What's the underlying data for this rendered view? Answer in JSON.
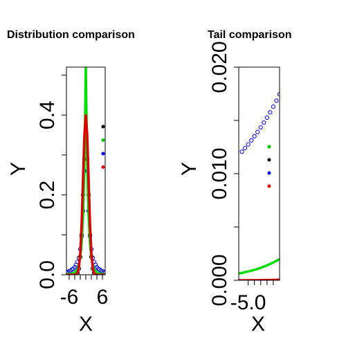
{
  "chart_data": [
    {
      "type": "line",
      "title": "Distribution comparison",
      "xlabel": "X",
      "ylabel": "Y",
      "xlim": [
        -7,
        7
      ],
      "ylim": [
        0,
        0.52
      ],
      "x_ticks": [
        -6,
        -4,
        -2,
        0,
        2,
        4,
        6
      ],
      "x_tick_labels": [
        "-6",
        "",
        "",
        "",
        "",
        "",
        "6"
      ],
      "y_ticks": [
        0,
        0.1,
        0.2,
        0.3,
        0.4,
        0.5
      ],
      "y_tick_labels": [
        "0.0",
        "",
        "0.2",
        "",
        "0.4",
        ""
      ],
      "legend_placement": "right",
      "legend_colors": [
        "#000000",
        "#00cc00",
        "#0000ff",
        "#ff0000"
      ],
      "series": [
        {
          "color": "#0000ff",
          "style": "points",
          "x": [
            -7,
            -6.5,
            -6,
            -5.5,
            -5,
            -4.5,
            -4,
            -3.5,
            -3,
            -2.5,
            -2,
            -1.5,
            -1,
            -0.5,
            0,
            0.5,
            1,
            1.5,
            2,
            2.5,
            3,
            3.5,
            4,
            4.5,
            5,
            5.5,
            6,
            6.5,
            7
          ],
          "y": [
            0.006,
            0.007,
            0.009,
            0.01,
            0.013,
            0.015,
            0.019,
            0.025,
            0.032,
            0.042,
            0.064,
            0.096,
            0.16,
            0.26,
            0.318,
            0.26,
            0.16,
            0.096,
            0.064,
            0.042,
            0.032,
            0.025,
            0.019,
            0.015,
            0.013,
            0.01,
            0.009,
            0.007,
            0.006
          ]
        },
        {
          "color": "#000000",
          "style": "points",
          "x": [
            -3,
            -2.5,
            -2,
            -1.5,
            -1,
            -0.5,
            0,
            0.5,
            1,
            1.5,
            2,
            2.5,
            3
          ],
          "y": [
            0.005,
            0.015,
            0.045,
            0.1,
            0.2,
            0.29,
            0.31,
            0.29,
            0.2,
            0.1,
            0.045,
            0.015,
            0.005
          ]
        },
        {
          "color": "#00dd00",
          "style": "line",
          "x": [
            -7,
            -6,
            -5,
            -4,
            -3,
            -2.5,
            -2,
            -1.5,
            -1,
            -0.7,
            -0.4,
            -0.2,
            0,
            0.2,
            0.4,
            0.7,
            1,
            1.5,
            2,
            2.5,
            3,
            4,
            5,
            6,
            7
          ],
          "y": [
            0.001,
            0.002,
            0.003,
            0.006,
            0.014,
            0.025,
            0.045,
            0.08,
            0.15,
            0.22,
            0.32,
            0.42,
            0.52,
            0.42,
            0.32,
            0.22,
            0.15,
            0.08,
            0.045,
            0.025,
            0.014,
            0.006,
            0.003,
            0.002,
            0.001
          ]
        },
        {
          "color": "#dd0000",
          "style": "line",
          "x": [
            -7,
            -5,
            -4,
            -3.5,
            -3,
            -2.5,
            -2,
            -1.5,
            -1,
            -0.5,
            0,
            0.5,
            1,
            1.5,
            2,
            2.5,
            3,
            3.5,
            4,
            5,
            7
          ],
          "y": [
            0,
            0,
            0.0001,
            0.0009,
            0.004,
            0.018,
            0.054,
            0.13,
            0.242,
            0.352,
            0.399,
            0.352,
            0.242,
            0.13,
            0.054,
            0.018,
            0.004,
            0.0009,
            0.0001,
            0,
            0
          ]
        }
      ]
    },
    {
      "type": "line",
      "title": "Tail comparison",
      "xlabel": "X",
      "ylabel": "Y",
      "xlim": [
        -5.3,
        -4.0
      ],
      "ylim": [
        0,
        0.02
      ],
      "x_ticks": [
        -5.0,
        -4.8,
        -4.6,
        -4.4,
        -4.2
      ],
      "x_tick_labels": [
        "-5.0",
        "",
        "",
        "",
        ""
      ],
      "y_ticks": [
        0,
        0.005,
        0.01,
        0.015,
        0.02
      ],
      "y_tick_labels": [
        "0.000",
        "",
        "0.010",
        "",
        "0.020"
      ],
      "legend_placement": "right",
      "legend_colors": [
        "#00cc00",
        "#000000",
        "#0000ff",
        "#ff0000"
      ],
      "series": [
        {
          "color": "#0000ff",
          "style": "points",
          "x": [
            -5.2,
            -5.1,
            -5.0,
            -4.9,
            -4.8,
            -4.7,
            -4.6,
            -4.5,
            -4.4,
            -4.3,
            -4.2,
            -4.1,
            -4.0
          ],
          "y": [
            0.01206,
            0.0124,
            0.01275,
            0.01312,
            0.01351,
            0.01391,
            0.01434,
            0.01479,
            0.01526,
            0.01576,
            0.01629,
            0.01685,
            0.01745
          ]
        },
        {
          "color": "#00dd00",
          "style": "line",
          "x": [
            -5.3,
            -5.2,
            -5.1,
            -5.0,
            -4.9,
            -4.8,
            -4.7,
            -4.6,
            -4.5,
            -4.4,
            -4.3,
            -4.2,
            -4.1,
            -4.0
          ],
          "y": [
            0.00063,
            0.00069,
            0.00076,
            0.00083,
            0.0009,
            0.00098,
            0.00107,
            0.00117,
            0.00128,
            0.0014,
            0.00153,
            0.00167,
            0.00182,
            0.00198
          ]
        },
        {
          "color": "#dd0000",
          "style": "line",
          "x": [
            -5.3,
            -5.2,
            -5.1,
            -5.0,
            -4.9,
            -4.8,
            -4.7,
            -4.6,
            -4.5,
            -4.4,
            -4.3,
            -4.2,
            -4.1,
            -4.0
          ],
          "y": [
            1.6e-06,
            1.9e-06,
            2.3e-06,
            3.1e-06,
            3.5e-06,
            5.2e-06,
            7e-06,
            9.5e-06,
            1.28e-05,
            1.71e-05,
            2.28e-05,
            3.01e-05,
            3.99e-05,
            5.2e-05
          ]
        }
      ]
    }
  ]
}
